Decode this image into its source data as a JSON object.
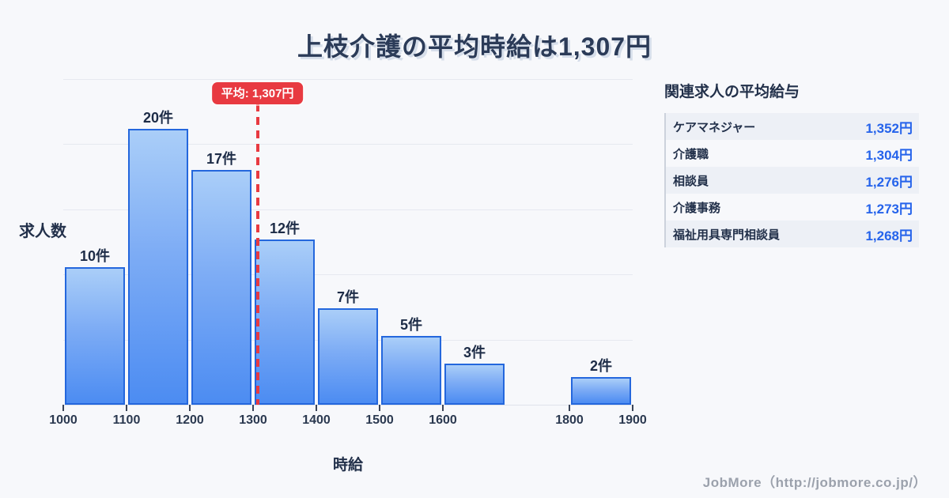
{
  "title": "上枝介護の平均時給は1,307円",
  "chart_data": {
    "type": "bar",
    "title": "上枝介護の平均時給は1,307円",
    "xlabel": "時給",
    "ylabel": "求人数",
    "unit_suffix": "件",
    "bins": [
      {
        "x_start": 1000,
        "x_end": 1100,
        "count": 10,
        "label": "10件"
      },
      {
        "x_start": 1100,
        "x_end": 1200,
        "count": 20,
        "label": "20件"
      },
      {
        "x_start": 1200,
        "x_end": 1300,
        "count": 17,
        "label": "17件"
      },
      {
        "x_start": 1300,
        "x_end": 1400,
        "count": 12,
        "label": "12件"
      },
      {
        "x_start": 1400,
        "x_end": 1500,
        "count": 7,
        "label": "7件"
      },
      {
        "x_start": 1500,
        "x_end": 1600,
        "count": 5,
        "label": "5件"
      },
      {
        "x_start": 1600,
        "x_end": 1700,
        "count": 3,
        "label": "3件"
      },
      {
        "x_start": 1800,
        "x_end": 1900,
        "count": 2,
        "label": "2件"
      }
    ],
    "x_ticks": [
      1000,
      1100,
      1200,
      1300,
      1400,
      1500,
      1600,
      1800,
      1900
    ],
    "x_range": [
      1000,
      1900
    ],
    "ylim": [
      0,
      23.6
    ],
    "grid": true,
    "legend": "none",
    "average": {
      "value": 1307,
      "label": "平均: 1,307円"
    },
    "colors": {
      "bar_top": "#aacef8",
      "bar_bottom": "#4c8cf2",
      "bar_border": "#2467dd",
      "average_line": "#e83a41",
      "background": "#f7f8fb",
      "value_text": "#2563eb"
    }
  },
  "panel": {
    "title": "関連求人の平均給与",
    "rows": [
      {
        "label": "ケアマネジャー",
        "value": "1,352円"
      },
      {
        "label": "介護職",
        "value": "1,304円"
      },
      {
        "label": "相談員",
        "value": "1,276円"
      },
      {
        "label": "介護事務",
        "value": "1,273円"
      },
      {
        "label": "福祉用具専門相談員",
        "value": "1,268円"
      }
    ]
  },
  "footer": {
    "credit": "JobMore（http://jobmore.co.jp/）"
  }
}
